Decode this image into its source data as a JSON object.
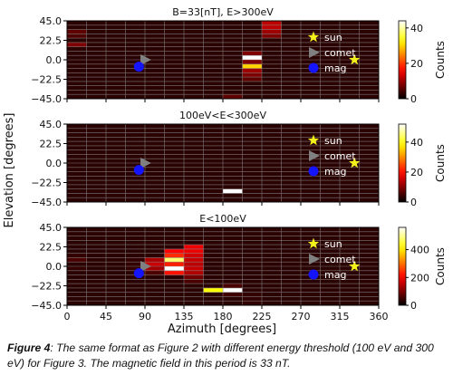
{
  "colors": {
    "background_cell": "#2a0202",
    "sun": "#f2f21a",
    "comet": "#808080",
    "mag": "#1414ff",
    "grid": "#8c8c8c"
  },
  "colormap": "hot",
  "common": {
    "x_range": [
      0,
      360
    ],
    "y_range": [
      -45,
      45
    ],
    "x_ticks": [
      "0",
      "45",
      "90",
      "135",
      "180",
      "225",
      "270",
      "315",
      "360"
    ],
    "y_ticks": [
      "45.0",
      "22.5",
      "0.0",
      "−22.5",
      "−45.0"
    ],
    "xlabel": "Azimuth [degrees]",
    "ylabel": "Elevation [degrees]",
    "colorbar_label": "Counts",
    "bin_width_deg": 22.5,
    "bin_height_deg": 5,
    "grid": true,
    "legend_position": "upper-right",
    "legend": [
      {
        "name": "sun",
        "marker": "star-icon"
      },
      {
        "name": "comet",
        "marker": "triangle-right-icon"
      },
      {
        "name": "mag",
        "marker": "circle-icon"
      }
    ]
  },
  "chart_data": [
    {
      "type": "heatmap",
      "title": "B=33[nT], E>300eV",
      "vmax": 44,
      "colorbar_ticks": [
        0,
        20,
        40
      ],
      "markers": {
        "sun": [
          332,
          0
        ],
        "comet": [
          90,
          0
        ],
        "mag": [
          83,
          -8
        ]
      },
      "cells": [
        {
          "az": 11.25,
          "el": 32.5,
          "v": 6
        },
        {
          "az": 11.25,
          "el": 27.5,
          "v": 5
        },
        {
          "az": 11.25,
          "el": 17.5,
          "v": 8
        },
        {
          "az": 236.25,
          "el": 42.5,
          "v": 12
        },
        {
          "az": 236.25,
          "el": 37.5,
          "v": 12
        },
        {
          "az": 236.25,
          "el": 32.5,
          "v": 10
        },
        {
          "az": 236.25,
          "el": 27.5,
          "v": 8
        },
        {
          "az": 213.75,
          "el": 7.5,
          "v": 8
        },
        {
          "az": 213.75,
          "el": 2.5,
          "v": 44
        },
        {
          "az": 213.75,
          "el": -2.5,
          "v": 8
        },
        {
          "az": 213.75,
          "el": -7.5,
          "v": 30
        },
        {
          "az": 213.75,
          "el": -12.5,
          "v": 10
        },
        {
          "az": 213.75,
          "el": -17.5,
          "v": 8
        },
        {
          "az": 213.75,
          "el": -22.5,
          "v": 6
        },
        {
          "az": 191.25,
          "el": -42.5,
          "v": 6
        }
      ]
    },
    {
      "type": "heatmap",
      "title": "100eV<E<300eV",
      "vmax": 52,
      "colorbar_ticks": [
        0,
        20,
        40
      ],
      "markers": {
        "sun": [
          332,
          0
        ],
        "comet": [
          90,
          0
        ],
        "mag": [
          83,
          -8
        ]
      },
      "cells": [
        {
          "az": 191.25,
          "el": -32.5,
          "v": 52
        }
      ]
    },
    {
      "type": "heatmap",
      "title": "E<100eV",
      "vmax": 560,
      "colorbar_ticks": [
        0,
        200,
        400
      ],
      "markers": {
        "sun": [
          332,
          0
        ],
        "comet": [
          90,
          0
        ],
        "mag": [
          83,
          -8
        ]
      },
      "cells": [
        {
          "az": 11.25,
          "el": 12.5,
          "v": 40
        },
        {
          "az": 11.25,
          "el": 7.5,
          "v": 60
        },
        {
          "az": 11.25,
          "el": -2.5,
          "v": 40
        },
        {
          "az": 11.25,
          "el": -27.5,
          "v": 30
        },
        {
          "az": 78.75,
          "el": 7.5,
          "v": 40
        },
        {
          "az": 78.75,
          "el": 2.5,
          "v": 40
        },
        {
          "az": 78.75,
          "el": -2.5,
          "v": 40
        },
        {
          "az": 101.25,
          "el": 7.5,
          "v": 140
        },
        {
          "az": 101.25,
          "el": 2.5,
          "v": 160
        },
        {
          "az": 101.25,
          "el": -2.5,
          "v": 130
        },
        {
          "az": 101.25,
          "el": -7.5,
          "v": 60
        },
        {
          "az": 123.75,
          "el": 17.5,
          "v": 200
        },
        {
          "az": 123.75,
          "el": 12.5,
          "v": 240
        },
        {
          "az": 123.75,
          "el": 7.5,
          "v": 480
        },
        {
          "az": 123.75,
          "el": 2.5,
          "v": 230
        },
        {
          "az": 123.75,
          "el": -2.5,
          "v": 560
        },
        {
          "az": 123.75,
          "el": -7.5,
          "v": 220
        },
        {
          "az": 146.25,
          "el": 22.5,
          "v": 190
        },
        {
          "az": 146.25,
          "el": 17.5,
          "v": 190
        },
        {
          "az": 146.25,
          "el": 12.5,
          "v": 170
        },
        {
          "az": 146.25,
          "el": 7.5,
          "v": 160
        },
        {
          "az": 146.25,
          "el": 2.5,
          "v": 150
        },
        {
          "az": 146.25,
          "el": -2.5,
          "v": 160
        },
        {
          "az": 146.25,
          "el": -7.5,
          "v": 140
        },
        {
          "az": 146.25,
          "el": -12.5,
          "v": 90
        },
        {
          "az": 146.25,
          "el": -17.5,
          "v": 60
        },
        {
          "az": 168.75,
          "el": -27.5,
          "v": 420
        },
        {
          "az": 191.25,
          "el": -27.5,
          "v": 560
        },
        {
          "az": 191.25,
          "el": -22.5,
          "v": 60
        },
        {
          "az": 191.25,
          "el": -32.5,
          "v": 50
        },
        {
          "az": 213.75,
          "el": -32.5,
          "v": 40
        },
        {
          "az": 213.75,
          "el": -37.5,
          "v": 40
        },
        {
          "az": 213.75,
          "el": -42.5,
          "v": 40
        }
      ]
    }
  ],
  "caption": {
    "label": "Figure 4",
    "text": ": The same format as Figure 2 with different energy threshold (100 eV and 300 eV) for Figure 3. The magnetic field in this period is 33 nT."
  }
}
